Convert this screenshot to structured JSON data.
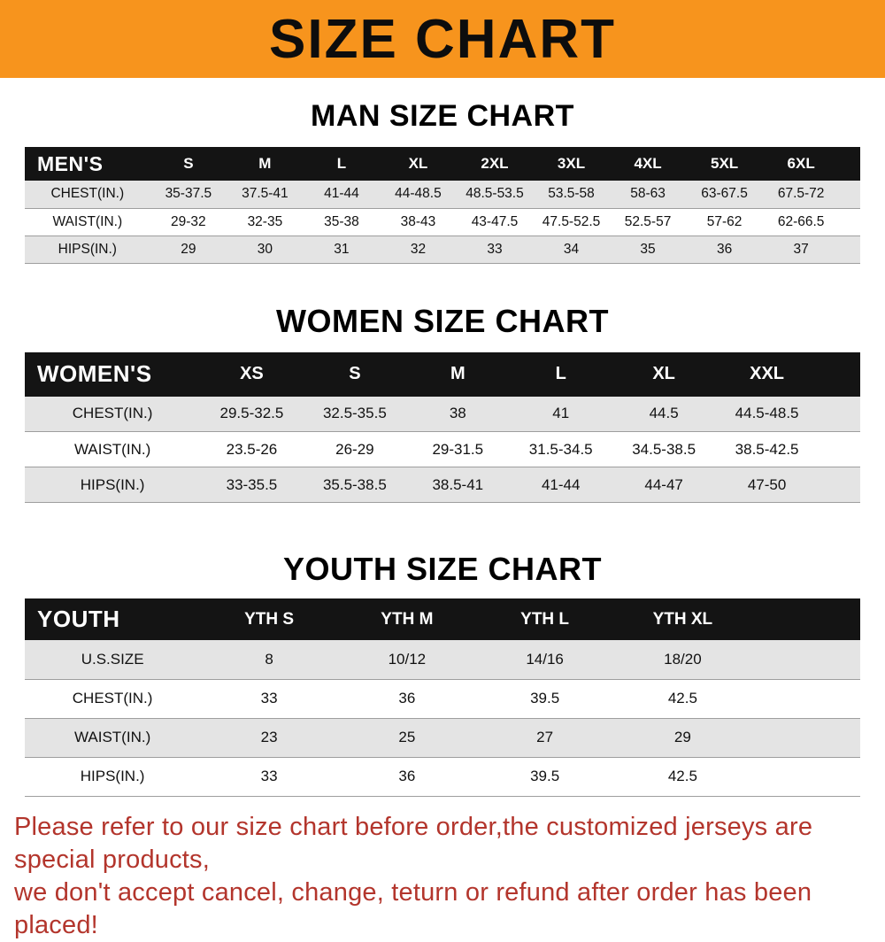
{
  "theme": {
    "banner_bg": "#f7941d",
    "header_bg": "#141414",
    "stripe_color": "#e4e4e4",
    "note_color": "#b3352c"
  },
  "banner": {
    "title": "SIZE CHART"
  },
  "sections": [
    {
      "id": "men",
      "heading": "MAN SIZE CHART",
      "table": {
        "header_label": "MEN'S",
        "columns": [
          "S",
          "M",
          "L",
          "XL",
          "2XL",
          "3XL",
          "4XL",
          "5XL",
          "6XL"
        ],
        "rows": [
          {
            "label": "CHEST(IN.)",
            "values": [
              "35-37.5",
              "37.5-41",
              "41-44",
              "44-48.5",
              "48.5-53.5",
              "53.5-58",
              "58-63",
              "63-67.5",
              "67.5-72"
            ]
          },
          {
            "label": "WAIST(IN.)",
            "values": [
              "29-32",
              "32-35",
              "35-38",
              "38-43",
              "43-47.5",
              "47.5-52.5",
              "52.5-57",
              "57-62",
              "62-66.5"
            ]
          },
          {
            "label": "HIPS(IN.)",
            "values": [
              "29",
              "30",
              "31",
              "32",
              "33",
              "34",
              "35",
              "36",
              "37"
            ]
          }
        ]
      }
    },
    {
      "id": "women",
      "heading": "WOMEN SIZE CHART",
      "table": {
        "header_label": "WOMEN'S",
        "columns": [
          "XS",
          "S",
          "M",
          "L",
          "XL",
          "XXL"
        ],
        "rows": [
          {
            "label": "CHEST(IN.)",
            "values": [
              "29.5-32.5",
              "32.5-35.5",
              "38",
              "41",
              "44.5",
              "44.5-48.5"
            ]
          },
          {
            "label": "WAIST(IN.)",
            "values": [
              "23.5-26",
              "26-29",
              "29-31.5",
              "31.5-34.5",
              "34.5-38.5",
              "38.5-42.5"
            ]
          },
          {
            "label": "HIPS(IN.)",
            "values": [
              "33-35.5",
              "35.5-38.5",
              "38.5-41",
              "41-44",
              "44-47",
              "47-50"
            ]
          }
        ]
      }
    },
    {
      "id": "youth",
      "heading": "YOUTH SIZE CHART",
      "table": {
        "header_label": "YOUTH",
        "columns": [
          "YTH S",
          "YTH M",
          "YTH L",
          "YTH XL"
        ],
        "rows": [
          {
            "label": "U.S.SIZE",
            "values": [
              "8",
              "10/12",
              "14/16",
              "18/20"
            ]
          },
          {
            "label": "CHEST(IN.)",
            "values": [
              "33",
              "36",
              "39.5",
              "42.5"
            ]
          },
          {
            "label": "WAIST(IN.)",
            "values": [
              "23",
              "25",
              "27",
              "29"
            ]
          },
          {
            "label": "HIPS(IN.)",
            "values": [
              "33",
              "36",
              "39.5",
              "42.5"
            ]
          }
        ]
      }
    }
  ],
  "footer": {
    "line1": "Please refer to our size chart before order,the customized jerseys are special products,",
    "line2": "we don't accept cancel, change, teturn or refund after order has been placed!"
  }
}
